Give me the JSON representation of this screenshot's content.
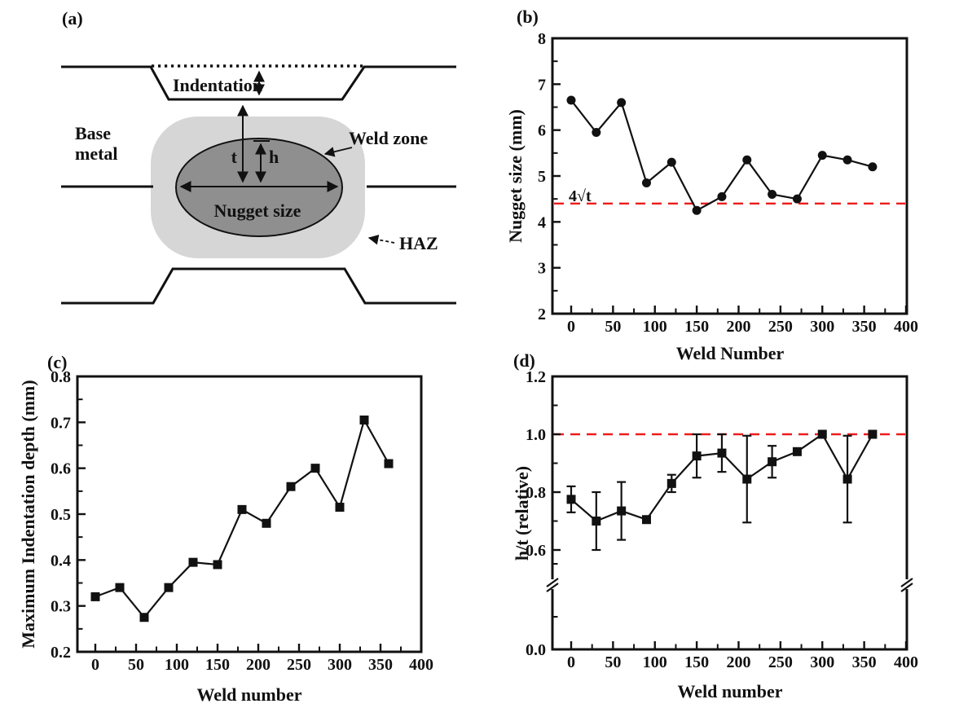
{
  "figure": {
    "background_color": "#ffffff",
    "line_color": "#111111",
    "reference_line_color": "#ed1c1c"
  },
  "schematic": {
    "tag": "(a)",
    "indentation_label": "Indentation",
    "base_metal_line1": "Base",
    "base_metal_line2": "metal",
    "weld_zone_label": "Weld zone",
    "haz_label": "HAZ",
    "nugget_size_label": "Nugget size",
    "thickness_label": "t",
    "penetration_label": "h",
    "haz_fill": "#d6d6d6",
    "nugget_fill": "#8f8f8f"
  },
  "chart_data": [
    {
      "id": "b",
      "panel_label": "(b)",
      "type": "line",
      "marker": "circle",
      "xlabel": "Weld Number",
      "ylabel": "Nugget size (mm)",
      "xlim": [
        -22,
        404
      ],
      "ylim": [
        2,
        8
      ],
      "grid": false,
      "xticks": [
        "0",
        "50",
        "100",
        "150",
        "200",
        "250",
        "300",
        "350",
        "400"
      ],
      "xticks_minor": [
        25,
        75,
        125,
        175,
        225,
        275,
        325,
        375
      ],
      "yticks": [
        "2",
        "3",
        "4",
        "5",
        "6",
        "7",
        "8"
      ],
      "yticks_minor": [
        2.5,
        3.5,
        4.5,
        5.5,
        6.5,
        7.5
      ],
      "x": [
        0,
        30,
        60,
        90,
        120,
        150,
        180,
        210,
        240,
        270,
        300,
        330,
        360
      ],
      "y": [
        6.65,
        5.95,
        6.6,
        4.85,
        5.3,
        4.25,
        4.55,
        5.35,
        4.6,
        4.5,
        5.45,
        5.35,
        5.2
      ],
      "ref_line": {
        "value": 4.4,
        "label": "4√t",
        "style": "dashed"
      }
    },
    {
      "id": "c",
      "panel_label": "(c)",
      "type": "line",
      "marker": "square",
      "xlabel": "Weld number",
      "ylabel": "Maximum Indentation depth (mm)",
      "xlim": [
        -20,
        402
      ],
      "ylim": [
        0.2,
        0.8
      ],
      "grid": false,
      "xticks": [
        "0",
        "50",
        "100",
        "150",
        "200",
        "250",
        "300",
        "350",
        "400"
      ],
      "xticks_minor": [
        25,
        75,
        125,
        175,
        225,
        275,
        325,
        375
      ],
      "yticks": [
        "0.2",
        "0.3",
        "0.4",
        "0.5",
        "0.6",
        "0.7",
        "0.8"
      ],
      "yticks_minor": [
        0.25,
        0.35,
        0.45,
        0.55,
        0.65,
        0.75
      ],
      "x": [
        0,
        30,
        60,
        90,
        120,
        150,
        180,
        210,
        240,
        270,
        300,
        330,
        360
      ],
      "y": [
        0.32,
        0.34,
        0.275,
        0.34,
        0.395,
        0.39,
        0.51,
        0.48,
        0.56,
        0.6,
        0.515,
        0.705,
        0.61
      ]
    },
    {
      "id": "d",
      "panel_label": "(d)",
      "type": "line",
      "marker": "square",
      "xlabel": "Weld number",
      "ylabel": "h/t (relative)",
      "xlim": [
        -22,
        404
      ],
      "ylim": [
        0,
        1.2
      ],
      "grid": false,
      "axis_break": {
        "axis": "y",
        "between": [
          0.05,
          0.55
        ]
      },
      "xticks": [
        "0",
        "50",
        "100",
        "150",
        "200",
        "250",
        "300",
        "350",
        "400"
      ],
      "xticks_minor": [
        25,
        75,
        125,
        175,
        225,
        275,
        325,
        375
      ],
      "yticks": [
        "0.0",
        "0.6",
        "0.8",
        "1.0",
        "1.2"
      ],
      "yticks_minor": [
        0.7,
        0.9,
        1.1
      ],
      "x": [
        0,
        30,
        60,
        90,
        120,
        150,
        180,
        210,
        240,
        270,
        300,
        330,
        360
      ],
      "y": [
        0.775,
        0.7,
        0.735,
        0.705,
        0.83,
        0.925,
        0.935,
        0.845,
        0.905,
        0.94,
        1.0,
        0.845,
        1.0
      ],
      "yerr": [
        0.045,
        0.1,
        0.1,
        0,
        0.03,
        0.075,
        0.065,
        0.15,
        0.055,
        0,
        0,
        0.15,
        0
      ],
      "ref_line": {
        "value": 1.0,
        "label": "",
        "style": "dashed"
      }
    }
  ]
}
